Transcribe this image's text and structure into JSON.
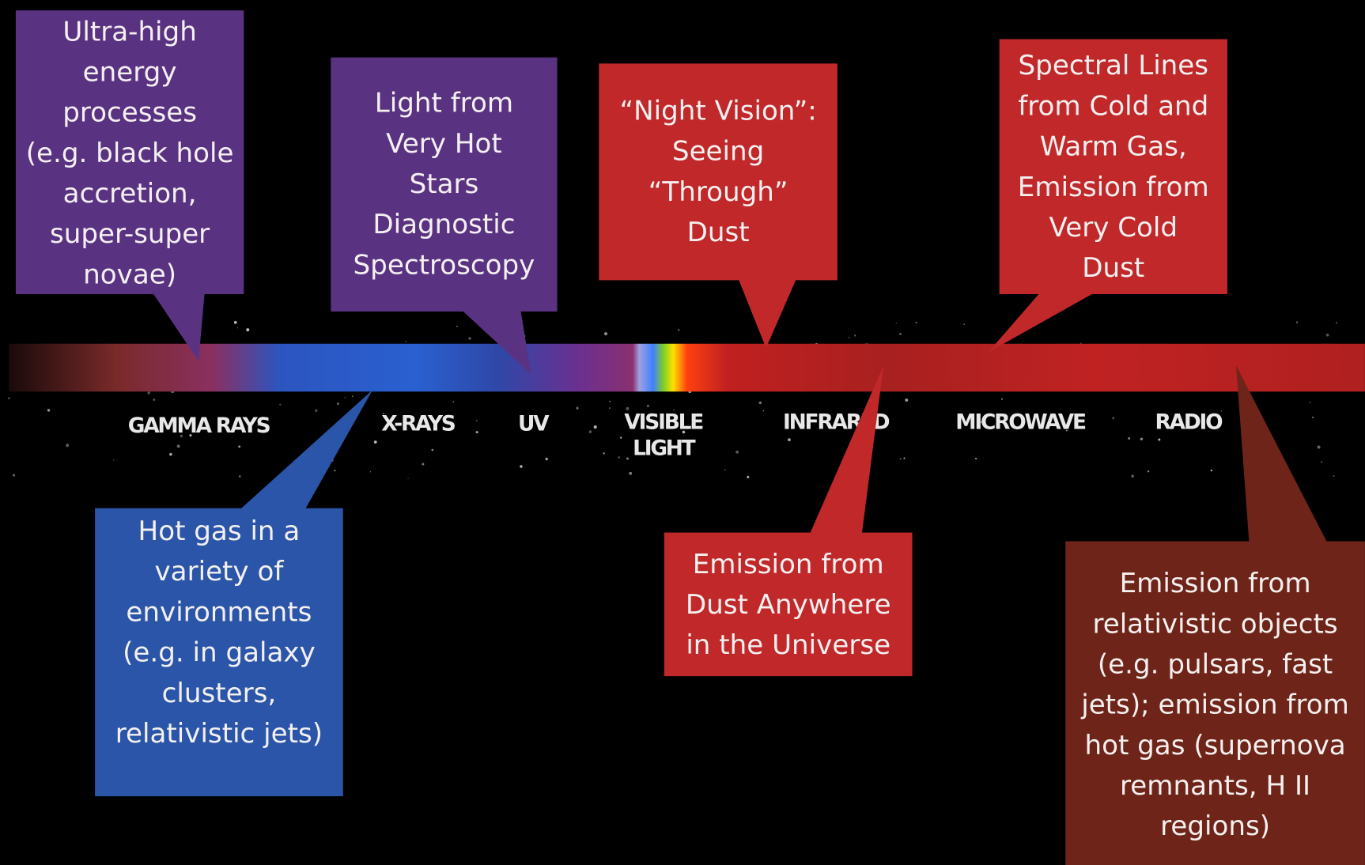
{
  "bands": [
    {
      "lines": [
        "GAMMA RAYS"
      ]
    },
    {
      "lines": [
        "X-RAYS"
      ]
    },
    {
      "lines": [
        "UV"
      ]
    },
    {
      "lines": [
        "VISIBLE",
        "LIGHT"
      ]
    },
    {
      "lines": [
        "INFRARED"
      ]
    },
    {
      "lines": [
        "MICROWAVE"
      ]
    },
    {
      "lines": [
        "RADIO"
      ]
    }
  ],
  "callouts": [
    {
      "lines": [
        "Ultra-high",
        "energy",
        "processes",
        "(e.g. black hole",
        "accretion,",
        "super-super",
        "novae)"
      ]
    },
    {
      "lines": [
        "Light from",
        "Very Hot",
        "Stars",
        "Diagnostic",
        "Spectroscopy"
      ]
    },
    {
      "lines": [
        "“Night Vision”:",
        "Seeing",
        "“Through”",
        "Dust"
      ]
    },
    {
      "lines": [
        "Spectral Lines",
        "from Cold and",
        "Warm Gas,",
        "Emission from",
        "Very Cold",
        "Dust"
      ]
    },
    {
      "lines": [
        "Hot gas  in a",
        "variety of",
        "environments",
        "(e.g. in galaxy",
        "clusters,",
        "relativistic jets)"
      ]
    },
    {
      "lines": [
        "Emission from",
        "Dust Anywhere",
        "in the Universe"
      ]
    },
    {
      "lines": [
        "Emission from",
        "relativistic objects",
        "(e.g. pulsars, fast",
        "jets); emission from",
        "hot gas (supernova",
        "remnants, H II",
        "regions)"
      ]
    }
  ]
}
